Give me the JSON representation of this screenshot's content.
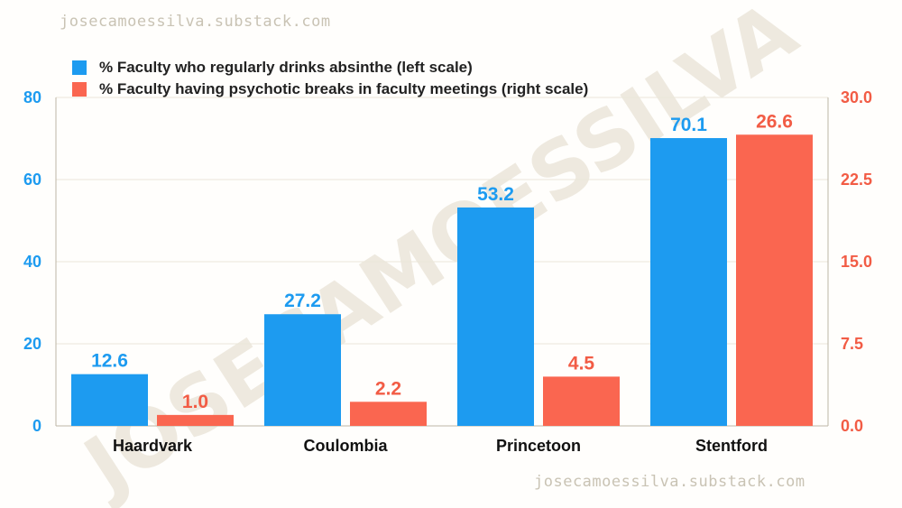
{
  "credit_top": "josecamoessilva.substack.com",
  "credit_bottom": "josecamoessilva.substack.com",
  "watermark": "JOSECAMOESSILVA",
  "colors": {
    "series_a": "#1d9bf0",
    "series_b": "#fa6650",
    "grid": "#ebe6da",
    "axis": "#bdb6a6"
  },
  "chart_data": {
    "type": "bar",
    "categories": [
      "Haardvark",
      "Coulombia",
      "Princetoon",
      "Stentford"
    ],
    "series": [
      {
        "name": "% Faculty who regularly drinks absinthe (left scale)",
        "axis": "left",
        "values": [
          12.6,
          27.2,
          53.2,
          70.1
        ],
        "labels": [
          "12.6",
          "27.2",
          "53.2",
          "70.1"
        ]
      },
      {
        "name": "% Faculty having psychotic breaks in faculty meetings (right scale)",
        "axis": "right",
        "values": [
          1.0,
          2.2,
          4.5,
          26.6
        ],
        "labels": [
          "1.0",
          "2.2",
          "4.5",
          "26.6"
        ]
      }
    ],
    "left_axis": {
      "ylim": [
        0,
        80
      ],
      "ticks": [
        "0",
        "20",
        "40",
        "60",
        "80"
      ]
    },
    "right_axis": {
      "ylim": [
        0,
        30
      ],
      "ticks": [
        "0.0",
        "7.5",
        "15.0",
        "22.5",
        "30.0"
      ]
    },
    "grid": true,
    "legend_position": "top-left"
  }
}
